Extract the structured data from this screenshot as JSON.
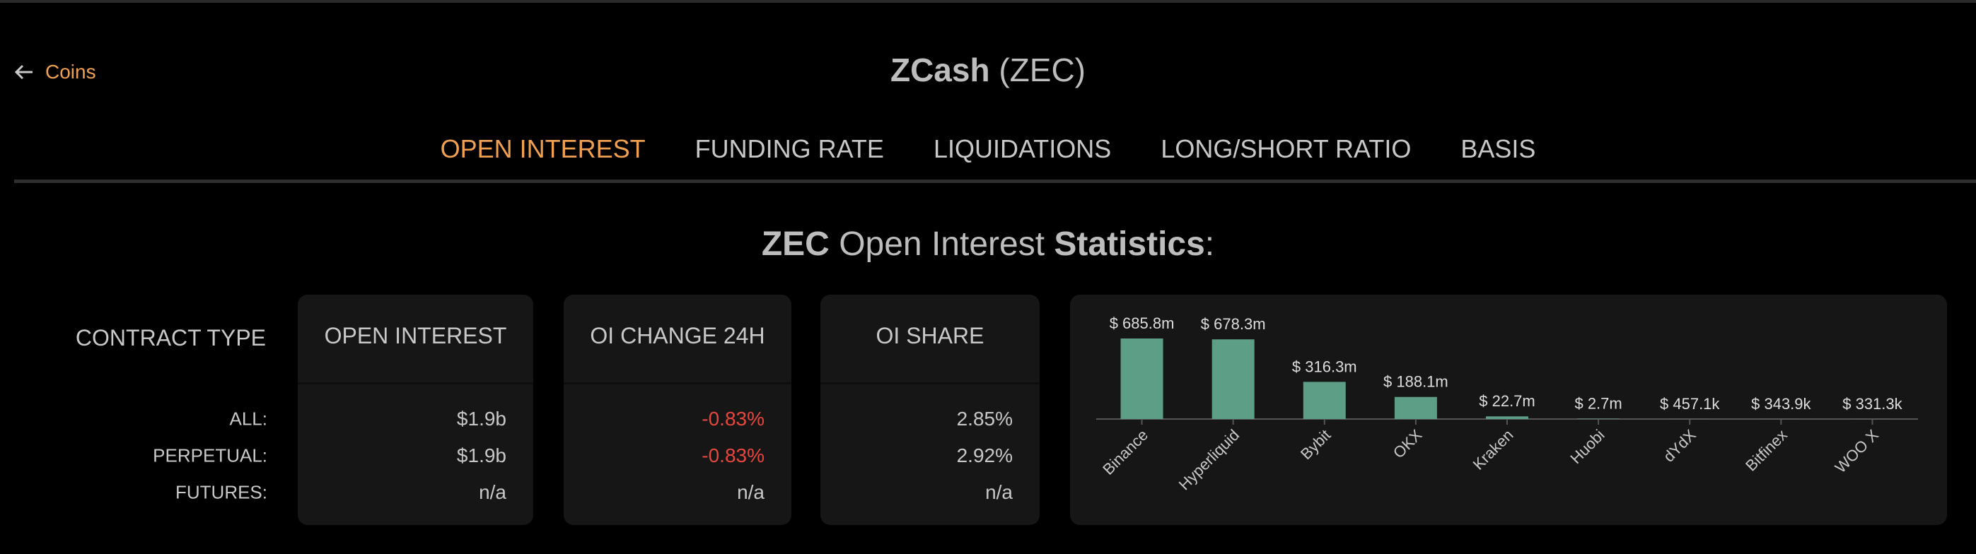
{
  "nav": {
    "back": "Coins"
  },
  "header": {
    "title": "ZCash",
    "symbol": "(ZEC)"
  },
  "tabs": {
    "items": [
      "OPEN INTEREST",
      "FUNDING RATE",
      "LIQUIDATIONS",
      "LONG/SHORT RATIO",
      "BASIS"
    ],
    "active": 0
  },
  "stats_title": {
    "symbol": "ZEC",
    "text": "Open Interest",
    "emphasis": "Statistics",
    "suffix": ":"
  },
  "table": {
    "row_header": "CONTRACT TYPE",
    "row_labels": [
      "ALL:",
      "PERPETUAL:",
      "FUTURES:"
    ],
    "columns": [
      {
        "header": "OPEN INTEREST",
        "cells": [
          "$1.9b",
          "$1.9b",
          "n/a"
        ]
      },
      {
        "header": "OI CHANGE 24H",
        "cells": [
          "-0.83%",
          "-0.83%",
          "n/a"
        ]
      },
      {
        "header": "OI SHARE",
        "cells": [
          "2.85%",
          "2.92%",
          "n/a"
        ]
      }
    ]
  },
  "chart_data": {
    "type": "bar",
    "categories": [
      "Binance",
      "Hyperliquid",
      "Bybit",
      "OKX",
      "Kraken",
      "Huobi",
      "dYdX",
      "Bitfinex",
      "WOO X"
    ],
    "values": [
      685800000,
      678300000,
      316300000,
      188100000,
      22700000,
      2700000,
      457100,
      343900,
      331300
    ],
    "value_labels": [
      "$ 685.8m",
      "$ 678.3m",
      "$ 316.3m",
      "$ 188.1m",
      "$ 22.7m",
      "$ 2.7m",
      "$ 457.1k",
      "$ 343.9k",
      "$ 331.3k"
    ],
    "color": "#5c9f86"
  }
}
